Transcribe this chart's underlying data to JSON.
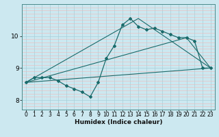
{
  "xlabel": "Humidex (Indice chaleur)",
  "bg_color": "#cce8f0",
  "grid_major_color": "#a8cfd8",
  "grid_minor_color": "#f0b8b8",
  "line_color": "#1a6b6b",
  "xlim": [
    -0.5,
    23.5
  ],
  "ylim": [
    7.7,
    11.0
  ],
  "xticks": [
    0,
    1,
    2,
    3,
    4,
    5,
    6,
    7,
    8,
    9,
    10,
    11,
    12,
    13,
    14,
    15,
    16,
    17,
    18,
    19,
    20,
    21,
    22,
    23
  ],
  "yticks": [
    8,
    9,
    10
  ],
  "line1_x": [
    0,
    1,
    2,
    3,
    4,
    5,
    6,
    7,
    8,
    9,
    10,
    11,
    12,
    13,
    14,
    15,
    16,
    17,
    18,
    19,
    20,
    21,
    22,
    23
  ],
  "line1_y": [
    8.55,
    8.7,
    8.7,
    8.7,
    8.6,
    8.45,
    8.35,
    8.25,
    8.1,
    8.55,
    9.3,
    9.7,
    10.35,
    10.55,
    10.3,
    10.2,
    10.25,
    10.15,
    10.05,
    9.95,
    9.95,
    9.85,
    9.0,
    9.0
  ],
  "line2_x": [
    0,
    23
  ],
  "line2_y": [
    8.55,
    9.0
  ],
  "line3_x": [
    0,
    14,
    23
  ],
  "line3_y": [
    8.55,
    10.55,
    9.0
  ],
  "line4_x": [
    0,
    20,
    23
  ],
  "line4_y": [
    8.55,
    9.95,
    9.0
  ],
  "minor_y_ticks": [
    7.8,
    7.9,
    8.1,
    8.2,
    8.3,
    8.4,
    8.5,
    8.6,
    8.7,
    8.8,
    8.9,
    9.1,
    9.2,
    9.3,
    9.4,
    9.5,
    9.6,
    9.7,
    9.8,
    9.9,
    10.1,
    10.2,
    10.3,
    10.4,
    10.5,
    10.6,
    10.7,
    10.8,
    10.9
  ]
}
